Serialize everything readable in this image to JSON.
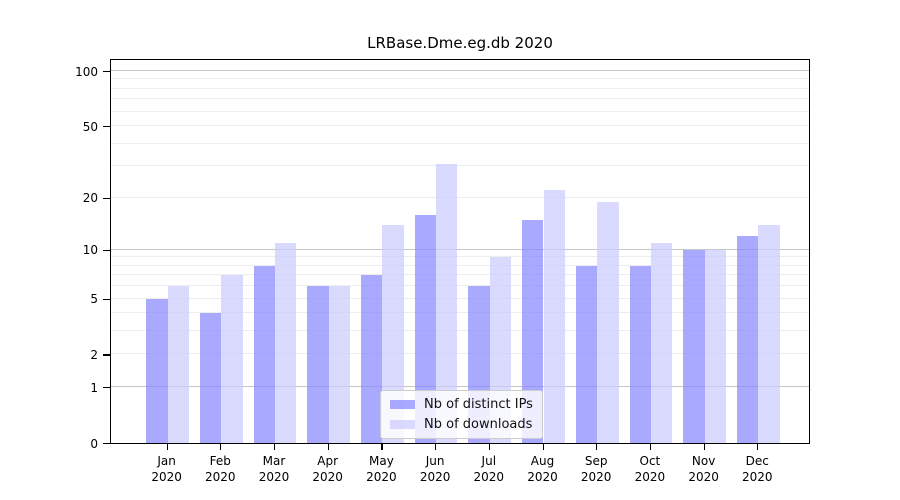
{
  "chart_data": {
    "type": "bar",
    "title": "LRBase.Dme.eg.db 2020",
    "categories": [
      "Jan",
      "Feb",
      "Mar",
      "Apr",
      "May",
      "Jun",
      "Jul",
      "Aug",
      "Sep",
      "Oct",
      "Nov",
      "Dec"
    ],
    "year": "2020",
    "series": [
      {
        "name": "Nb of distinct IPs",
        "color": "rgba(136,136,255,0.72)",
        "values": [
          5,
          4,
          8,
          6,
          7,
          16,
          6,
          15,
          8,
          8,
          10,
          12
        ]
      },
      {
        "name": "Nb of downloads",
        "color": "rgba(204,204,255,0.72)",
        "values": [
          6,
          7,
          11,
          6,
          14,
          31,
          9,
          22,
          19,
          11,
          10,
          14
        ]
      }
    ],
    "xlabel": "",
    "ylabel": "",
    "yscale": "log1p",
    "ylim": [
      0,
      113
    ],
    "y_tick_values": [
      0,
      1,
      2,
      5,
      10,
      20,
      50,
      100
    ],
    "y_tick_labels": [
      "0",
      "1",
      "2",
      "5",
      "10",
      "20",
      "50",
      "100"
    ],
    "y_grid_major": [
      1,
      10,
      100
    ],
    "y_grid_minor": [
      2,
      3,
      4,
      5,
      6,
      7,
      8,
      9,
      20,
      30,
      40,
      50,
      60,
      70,
      80,
      90
    ],
    "grid": "on",
    "legend_position": "inside-bottom-center",
    "colors": {
      "grid_minor": "#ededed",
      "grid_major": "#c6c6c6",
      "axis": "#000000",
      "legend_border": "#cccccc"
    }
  }
}
